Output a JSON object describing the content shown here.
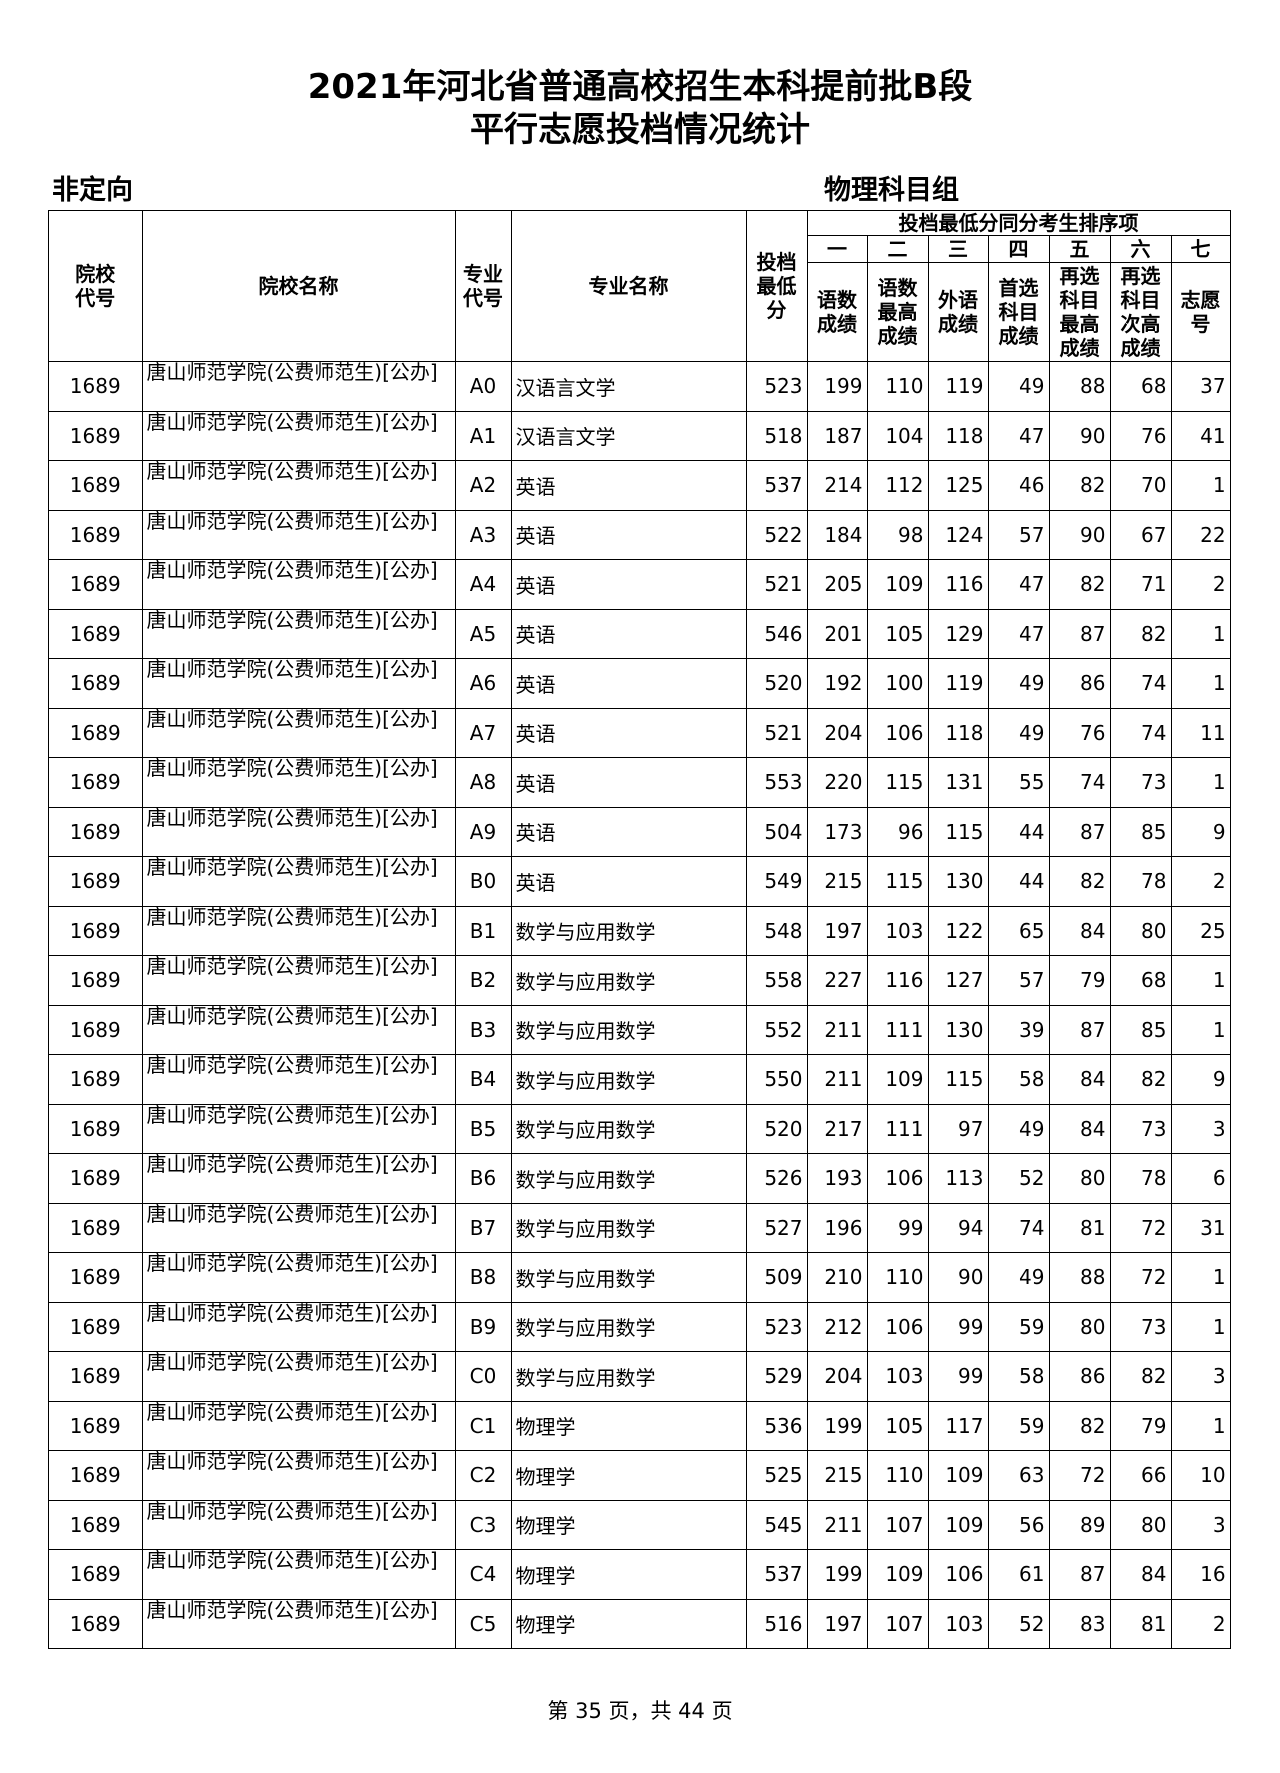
{
  "header": {
    "title_lines": [
      "2021年河北省普通高校招生本科提前批B段",
      "平行志愿投档情况统计"
    ],
    "left_label": "非定向",
    "right_label": "物理科目组"
  },
  "table": {
    "columns": [
      [
        "院校",
        "代号"
      ],
      [
        "院校名称"
      ],
      [
        "专业",
        "代号"
      ],
      [
        "专业名称"
      ],
      [
        "投档",
        "最低",
        "分"
      ]
    ],
    "group_header": "投档最低分同分考生排序项",
    "rank_numerals": [
      "一",
      "二",
      "三",
      "四",
      "五",
      "六",
      "七"
    ],
    "rank_headers": [
      [
        "语数",
        "成绩"
      ],
      [
        "语数",
        "最高",
        "成绩"
      ],
      [
        "外语",
        "成绩"
      ],
      [
        "首选",
        "科目",
        "成绩"
      ],
      [
        "再选",
        "科目",
        "最高",
        "成绩"
      ],
      [
        "再选",
        "科目",
        "次高",
        "成绩"
      ],
      [
        "志愿",
        "号"
      ]
    ],
    "rows": [
      [
        "1689",
        "唐山师范学院(公费师范生)[公办]",
        "A0",
        "汉语言文学",
        523,
        199,
        110,
        119,
        49,
        88,
        68,
        37
      ],
      [
        "1689",
        "唐山师范学院(公费师范生)[公办]",
        "A1",
        "汉语言文学",
        518,
        187,
        104,
        118,
        47,
        90,
        76,
        41
      ],
      [
        "1689",
        "唐山师范学院(公费师范生)[公办]",
        "A2",
        "英语",
        537,
        214,
        112,
        125,
        46,
        82,
        70,
        1
      ],
      [
        "1689",
        "唐山师范学院(公费师范生)[公办]",
        "A3",
        "英语",
        522,
        184,
        98,
        124,
        57,
        90,
        67,
        22
      ],
      [
        "1689",
        "唐山师范学院(公费师范生)[公办]",
        "A4",
        "英语",
        521,
        205,
        109,
        116,
        47,
        82,
        71,
        2
      ],
      [
        "1689",
        "唐山师范学院(公费师范生)[公办]",
        "A5",
        "英语",
        546,
        201,
        105,
        129,
        47,
        87,
        82,
        1
      ],
      [
        "1689",
        "唐山师范学院(公费师范生)[公办]",
        "A6",
        "英语",
        520,
        192,
        100,
        119,
        49,
        86,
        74,
        1
      ],
      [
        "1689",
        "唐山师范学院(公费师范生)[公办]",
        "A7",
        "英语",
        521,
        204,
        106,
        118,
        49,
        76,
        74,
        11
      ],
      [
        "1689",
        "唐山师范学院(公费师范生)[公办]",
        "A8",
        "英语",
        553,
        220,
        115,
        131,
        55,
        74,
        73,
        1
      ],
      [
        "1689",
        "唐山师范学院(公费师范生)[公办]",
        "A9",
        "英语",
        504,
        173,
        96,
        115,
        44,
        87,
        85,
        9
      ],
      [
        "1689",
        "唐山师范学院(公费师范生)[公办]",
        "B0",
        "英语",
        549,
        215,
        115,
        130,
        44,
        82,
        78,
        2
      ],
      [
        "1689",
        "唐山师范学院(公费师范生)[公办]",
        "B1",
        "数学与应用数学",
        548,
        197,
        103,
        122,
        65,
        84,
        80,
        25
      ],
      [
        "1689",
        "唐山师范学院(公费师范生)[公办]",
        "B2",
        "数学与应用数学",
        558,
        227,
        116,
        127,
        57,
        79,
        68,
        1
      ],
      [
        "1689",
        "唐山师范学院(公费师范生)[公办]",
        "B3",
        "数学与应用数学",
        552,
        211,
        111,
        130,
        39,
        87,
        85,
        1
      ],
      [
        "1689",
        "唐山师范学院(公费师范生)[公办]",
        "B4",
        "数学与应用数学",
        550,
        211,
        109,
        115,
        58,
        84,
        82,
        9
      ],
      [
        "1689",
        "唐山师范学院(公费师范生)[公办]",
        "B5",
        "数学与应用数学",
        520,
        217,
        111,
        97,
        49,
        84,
        73,
        3
      ],
      [
        "1689",
        "唐山师范学院(公费师范生)[公办]",
        "B6",
        "数学与应用数学",
        526,
        193,
        106,
        113,
        52,
        80,
        78,
        6
      ],
      [
        "1689",
        "唐山师范学院(公费师范生)[公办]",
        "B7",
        "数学与应用数学",
        527,
        196,
        99,
        94,
        74,
        81,
        72,
        31
      ],
      [
        "1689",
        "唐山师范学院(公费师范生)[公办]",
        "B8",
        "数学与应用数学",
        509,
        210,
        110,
        90,
        49,
        88,
        72,
        1
      ],
      [
        "1689",
        "唐山师范学院(公费师范生)[公办]",
        "B9",
        "数学与应用数学",
        523,
        212,
        106,
        99,
        59,
        80,
        73,
        1
      ],
      [
        "1689",
        "唐山师范学院(公费师范生)[公办]",
        "C0",
        "数学与应用数学",
        529,
        204,
        103,
        99,
        58,
        86,
        82,
        3
      ],
      [
        "1689",
        "唐山师范学院(公费师范生)[公办]",
        "C1",
        "物理学",
        536,
        199,
        105,
        117,
        59,
        82,
        79,
        1
      ],
      [
        "1689",
        "唐山师范学院(公费师范生)[公办]",
        "C2",
        "物理学",
        525,
        215,
        110,
        109,
        63,
        72,
        66,
        10
      ],
      [
        "1689",
        "唐山师范学院(公费师范生)[公办]",
        "C3",
        "物理学",
        545,
        211,
        107,
        109,
        56,
        89,
        80,
        3
      ],
      [
        "1689",
        "唐山师范学院(公费师范生)[公办]",
        "C4",
        "物理学",
        537,
        199,
        109,
        106,
        61,
        87,
        84,
        16
      ],
      [
        "1689",
        "唐山师范学院(公费师范生)[公办]",
        "C5",
        "物理学",
        516,
        197,
        107,
        103,
        52,
        83,
        81,
        2
      ]
    ]
  },
  "footer": "第 35 页，共 44 页"
}
